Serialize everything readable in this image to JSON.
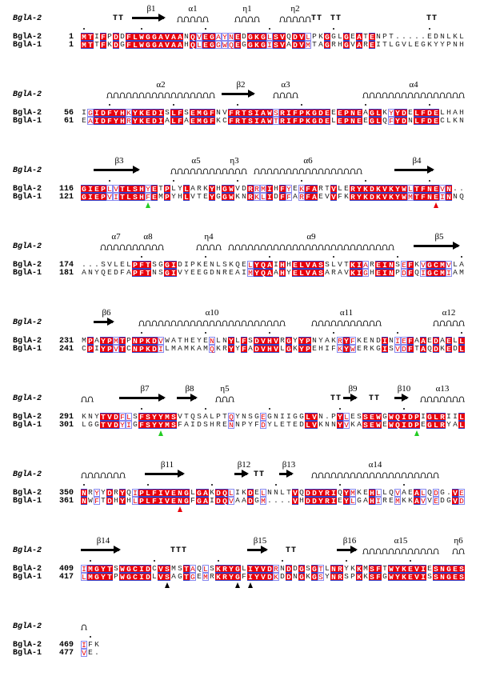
{
  "reference_label": "BglA-2",
  "names": [
    "BglA-2",
    "BglA-1"
  ],
  "colors": {
    "identical_bg": "#e8000b",
    "similar_text": "#e8000b",
    "frame": "#3344cc",
    "green_triangle": "#22cc22",
    "red_triangle": "#e8000b",
    "black_triangle": "#000000"
  },
  "blocks": [
    {
      "num2": "1",
      "num1": "1",
      "seq2": "MTIFPDDFLWGGAVAANQVEGAYNEDGKGLSVQDVLPKGGLGEATENPT.....EDNLKL",
      "seq1": "MTTFKDGFLWGGAVAAHQLEGGWQEGGKGISVADVMTAGRHGVAREITLGVLEGKYYPNH",
      "ss": [
        {
          "type": "turn",
          "label": "TT",
          "from": 5,
          "to": 6
        },
        {
          "type": "strand",
          "label": "β1",
          "from": 8,
          "to": 13
        },
        {
          "type": "helix",
          "label": "α1",
          "from": 15,
          "to": 19
        },
        {
          "type": "helix",
          "label": "η1",
          "from": 24,
          "to": 27
        },
        {
          "type": "helix",
          "label": "η2",
          "from": 31,
          "to": 35
        },
        {
          "type": "turn",
          "label": "TT",
          "from": 36,
          "to": 37
        },
        {
          "type": "turn",
          "label": "TT",
          "from": 39,
          "to": 40
        },
        {
          "type": "turn",
          "label": "TT",
          "from": 54,
          "to": 55
        }
      ],
      "triangles": []
    },
    {
      "num2": "56",
      "num1": "61",
      "seq2": "IGIDFYHKYKEDISLFSEMGFNVFRTSIAWSRIFPKGDEEEPNEAGLKYYDELFDELHAH",
      "seq1": "EAIDFYHRYKEDIALFAEMGFKCFRTSIAWTRIFPKGDELEPNEEGLQFYDNLFDECLKN",
      "ss": [
        {
          "type": "helix",
          "label": "α2",
          "from": 4,
          "to": 20
        },
        {
          "type": "strand",
          "label": "β2",
          "from": 22,
          "to": 27
        },
        {
          "type": "helix",
          "label": "α3",
          "from": 30,
          "to": 33
        },
        {
          "type": "helix",
          "label": "α4",
          "from": 44,
          "to": 59
        }
      ],
      "triangles": []
    },
    {
      "num2": "116",
      "num1": "121",
      "seq2": "GIEPLVTLSHYETPLYLARKYHGWVDRRMIHFYEKFARTVLERYKDKVKYWLTFNEVN..",
      "seq1": "GIEPVITLSHFEMPYHLVTEYGGWKNRKLIDFFARFAEVVFKRYKDKVKYWMTFNEINNQ",
      "ss": [
        {
          "type": "strand",
          "label": "β3",
          "from": 2,
          "to": 9
        },
        {
          "type": "helix",
          "label": "α5",
          "from": 14,
          "to": 21
        },
        {
          "type": "helix",
          "label": "η3",
          "from": 22,
          "to": 25
        },
        {
          "type": "helix",
          "label": "α6",
          "from": 27,
          "to": 43
        },
        {
          "type": "strand",
          "label": "β4",
          "from": 49,
          "to": 55
        }
      ],
      "triangles": [
        {
          "col": 10,
          "color": "green"
        },
        {
          "col": 55,
          "color": "red"
        }
      ]
    },
    {
      "num2": "174",
      "num1": "181",
      "seq2": "...SVLELPFTSGGIDIPKENLSKQELYQAIHHELVASSLVTKIAREINSEFKVGCMVLA",
      "seq1": "ANYQEDFAPFTNSGIVYEEGDNREAIMYQAAHYELVASARAVKIGHEINPDFQIGCMIAM",
      "ss": [
        {
          "type": "helix",
          "label": "α7",
          "from": 3,
          "to": 7
        },
        {
          "type": "helix",
          "label": "α8",
          "from": 8,
          "to": 12
        },
        {
          "type": "helix",
          "label": "η4",
          "from": 18,
          "to": 21
        },
        {
          "type": "helix",
          "label": "α9",
          "from": 23,
          "to": 48
        },
        {
          "type": "strand",
          "label": "β5",
          "from": 52,
          "to": 59
        }
      ],
      "triangles": []
    },
    {
      "num2": "231",
      "num1": "241",
      "seq2": "MPAYPMTPNPKDVWATHEYENLNYLFSDVHVRGYYPNYAKRYFKENDINIEFAAEDAELL",
      "seq1": "CPIYPVTCNPKDILMAMKAMQKRYYFADVHVLGKYPEHIFKYWERKGISVDFTAQDKEDL",
      "ss": [
        {
          "type": "strand",
          "label": "β6",
          "from": 2,
          "to": 5
        },
        {
          "type": "helix",
          "label": "α10",
          "from": 9,
          "to": 31
        },
        {
          "type": "helix",
          "label": "α11",
          "from": 36,
          "to": 46
        },
        {
          "type": "helix",
          "label": "α12",
          "from": 55,
          "to": 59
        }
      ],
      "triangles": []
    },
    {
      "num2": "291",
      "num1": "301",
      "seq2": "KNYTVDFLSFSYYMSVTQSALPTQYNSGEGNIIGGLVN.PYLESSEWGWQIDPIGLRIIL",
      "seq1": "LGGTVDYIGFSYYMSFAIDSHRENNPYFDYLETEDLVKNNYVKASEWEWQIDPEGLRYAL",
      "ss": [
        {
          "type": "helix",
          "label": "",
          "from": 0,
          "to": 1
        },
        {
          "type": "strand",
          "label": "β7",
          "from": 6,
          "to": 13
        },
        {
          "type": "strand",
          "label": "β8",
          "from": 15,
          "to": 18
        },
        {
          "type": "helix",
          "label": "η5",
          "from": 21,
          "to": 23
        },
        {
          "type": "turn",
          "label": "TT",
          "from": 39,
          "to": 40
        },
        {
          "type": "strand",
          "label": "β9",
          "from": 41,
          "to": 43
        },
        {
          "type": "turn",
          "label": "TT",
          "from": 45,
          "to": 46
        },
        {
          "type": "strand",
          "label": "β10",
          "from": 49,
          "to": 51
        },
        {
          "type": "helix",
          "label": "α13",
          "from": 53,
          "to": 59
        }
      ],
      "triangles": [
        {
          "col": 12,
          "color": "green"
        },
        {
          "col": 52,
          "color": "green"
        }
      ]
    },
    {
      "num2": "350",
      "num1": "361",
      "seq2": "NRYYDRYQIPLFIVENGLGAKDQLIKDELNNLTVQDDYRIQYMKEHLLQVAEALQDG.VE",
      "seq1": "NWFTDHYHLPLFIVENGFGAIDQVAADGM....VHDDYRIEYLGAHIREMKKAVVEDGVD",
      "ss": [
        {
          "type": "helix",
          "label": "",
          "from": 0,
          "to": 6
        },
        {
          "type": "strand",
          "label": "β11",
          "from": 10,
          "to": 16
        },
        {
          "type": "strand",
          "label": "β12",
          "from": 24,
          "to": 26
        },
        {
          "type": "turn",
          "label": "TT",
          "from": 27,
          "to": 28
        },
        {
          "type": "strand",
          "label": "β13",
          "from": 31,
          "to": 33
        },
        {
          "type": "helix",
          "label": "α14",
          "from": 36,
          "to": 55
        }
      ],
      "triangles": [
        {
          "col": 15,
          "color": "red"
        }
      ]
    },
    {
      "num2": "409",
      "num1": "417",
      "seq2": "IMGYTSWGCIDCVSMSTAQLSKRYGLIYVDRNDDGSGTLNRYKKMSFTWYKEVIESNGES",
      "seq1": "LMGYTPWGCIDLVSAGTGEMRKRYGFIYVDKDDNGKGSYNRSPKKSFGWYKEVISSNGES",
      "ss": [
        {
          "type": "strand",
          "label": "β14",
          "from": 0,
          "to": 6
        },
        {
          "type": "turn",
          "label": "TTT",
          "from": 14,
          "to": 16
        },
        {
          "type": "strand",
          "label": "β15",
          "from": 26,
          "to": 29
        },
        {
          "type": "turn",
          "label": "TT",
          "from": 32,
          "to": 33
        },
        {
          "type": "strand",
          "label": "β16",
          "from": 40,
          "to": 43
        },
        {
          "type": "helix",
          "label": "α15",
          "from": 44,
          "to": 55
        },
        {
          "type": "helix",
          "label": "η6",
          "from": 58,
          "to": 59
        }
      ],
      "triangles": [
        {
          "col": 13,
          "color": "black"
        },
        {
          "col": 24,
          "color": "black"
        },
        {
          "col": 26,
          "color": "black"
        }
      ]
    },
    {
      "num2": "469",
      "num1": "477",
      "seq2": "IFK",
      "seq1": "VE.",
      "ss": [
        {
          "type": "helix",
          "label": "",
          "from": 0,
          "to": 0
        }
      ],
      "triangles": []
    }
  ]
}
